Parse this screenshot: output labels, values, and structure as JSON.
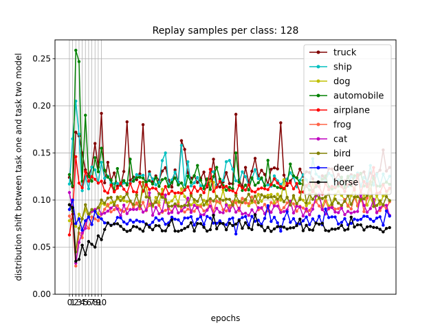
{
  "chart_data": {
    "type": "line",
    "title": "Replay samples per class: 128",
    "xlabel": "epochs",
    "ylabel": "distribution shift between task one and task two model",
    "xlim": [
      -4.5,
      102
    ],
    "ylim": [
      0.0,
      0.27
    ],
    "xticks": [
      0,
      1,
      2,
      3,
      4,
      5,
      6,
      7,
      8,
      9,
      10
    ],
    "yticks": [
      0.0,
      0.05,
      0.1,
      0.15,
      0.2,
      0.25
    ],
    "ytick_labels": [
      "0.00",
      "0.05",
      "0.10",
      "0.15",
      "0.20",
      "0.25"
    ],
    "vlines": [
      0,
      1,
      2,
      3,
      4,
      5,
      6,
      7,
      8,
      9,
      10
    ],
    "grid": "horizontal",
    "legend_position": "top-right",
    "n_points": 101,
    "series": [
      {
        "name": "truck",
        "color": "#800000",
        "base": 0.124,
        "scale": 0.011,
        "seed": 11,
        "anchors": {
          "0": 0.124,
          "1": 0.114,
          "2": 0.172,
          "3": 0.168,
          "4": 0.15,
          "5": 0.132,
          "6": 0.126,
          "7": 0.135,
          "8": 0.16,
          "9": 0.135,
          "10": 0.192,
          "12": 0.14,
          "18": 0.183,
          "23": 0.18,
          "35": 0.163,
          "52": 0.191,
          "66": 0.182
        }
      },
      {
        "name": "ship",
        "color": "#00bfbf",
        "base": 0.122,
        "scale": 0.008,
        "seed": 23,
        "anchors": {
          "0": 0.117,
          "1": 0.165,
          "2": 0.205,
          "3": 0.17,
          "4": 0.11,
          "5": 0.125,
          "6": 0.112,
          "7": 0.135,
          "8": 0.132,
          "10": 0.14,
          "30": 0.15,
          "35": 0.158
        }
      },
      {
        "name": "dog",
        "color": "#bfbf00",
        "base": 0.1,
        "scale": 0.007,
        "seed": 37,
        "anchors": {
          "0": 0.078,
          "1": 0.077,
          "2": 0.072,
          "3": 0.085,
          "4": 0.08,
          "5": 0.09,
          "6": 0.082,
          "7": 0.088,
          "8": 0.09,
          "9": 0.085
        }
      },
      {
        "name": "automobile",
        "color": "#008000",
        "base": 0.118,
        "scale": 0.008,
        "seed": 41,
        "anchors": {
          "0": 0.127,
          "1": 0.115,
          "2": 0.259,
          "3": 0.247,
          "4": 0.12,
          "5": 0.19,
          "6": 0.125,
          "7": 0.12,
          "8": 0.145,
          "9": 0.13,
          "10": 0.155,
          "52": 0.15
        }
      },
      {
        "name": "airplane",
        "color": "#ff0000",
        "base": 0.113,
        "scale": 0.007,
        "seed": 53,
        "anchors": {
          "0": 0.063,
          "1": 0.085,
          "2": 0.146,
          "3": 0.118,
          "4": 0.113,
          "5": 0.13,
          "6": 0.12,
          "7": 0.125,
          "8": 0.122,
          "9": 0.118,
          "10": 0.12
        }
      },
      {
        "name": "frog",
        "color": "#ff6347",
        "base": 0.093,
        "scale": 0.006,
        "seed": 67,
        "anchors": {
          "0": 0.083,
          "1": 0.075,
          "2": 0.03,
          "3": 0.065,
          "4": 0.06,
          "5": 0.075,
          "6": 0.07,
          "7": 0.082,
          "8": 0.08,
          "9": 0.078,
          "10": 0.085
        }
      },
      {
        "name": "cat",
        "color": "#bf00bf",
        "base": 0.089,
        "scale": 0.006,
        "seed": 71,
        "anchors": {
          "0": 0.108,
          "1": 0.09,
          "2": 0.033,
          "3": 0.055,
          "4": 0.065,
          "5": 0.07,
          "6": 0.085,
          "7": 0.088,
          "8": 0.09,
          "9": 0.092,
          "10": 0.085
        }
      },
      {
        "name": "bird",
        "color": "#808000",
        "base": 0.1,
        "scale": 0.007,
        "seed": 83,
        "anchors": {
          "0": 0.095,
          "1": 0.088,
          "2": 0.045,
          "3": 0.07,
          "4": 0.08,
          "5": 0.095,
          "6": 0.085,
          "7": 0.09,
          "8": 0.088,
          "9": 0.092,
          "10": 0.1
        }
      },
      {
        "name": "deer",
        "color": "#0000ff",
        "base": 0.078,
        "scale": 0.005,
        "seed": 97,
        "anchors": {
          "0": 0.09,
          "1": 0.1,
          "2": 0.075,
          "3": 0.08,
          "4": 0.068,
          "5": 0.078,
          "6": 0.082,
          "7": 0.074,
          "8": 0.088,
          "9": 0.082,
          "10": 0.08,
          "52": 0.064,
          "66": 0.067
        }
      },
      {
        "name": "horse",
        "color": "#000000",
        "base": 0.071,
        "scale": 0.005,
        "seed": 101,
        "anchors": {
          "0": 0.095,
          "1": 0.092,
          "2": 0.035,
          "3": 0.037,
          "4": 0.052,
          "5": 0.042,
          "6": 0.056,
          "7": 0.053,
          "8": 0.05,
          "9": 0.062,
          "10": 0.058,
          "20": 0.072
        }
      }
    ]
  }
}
